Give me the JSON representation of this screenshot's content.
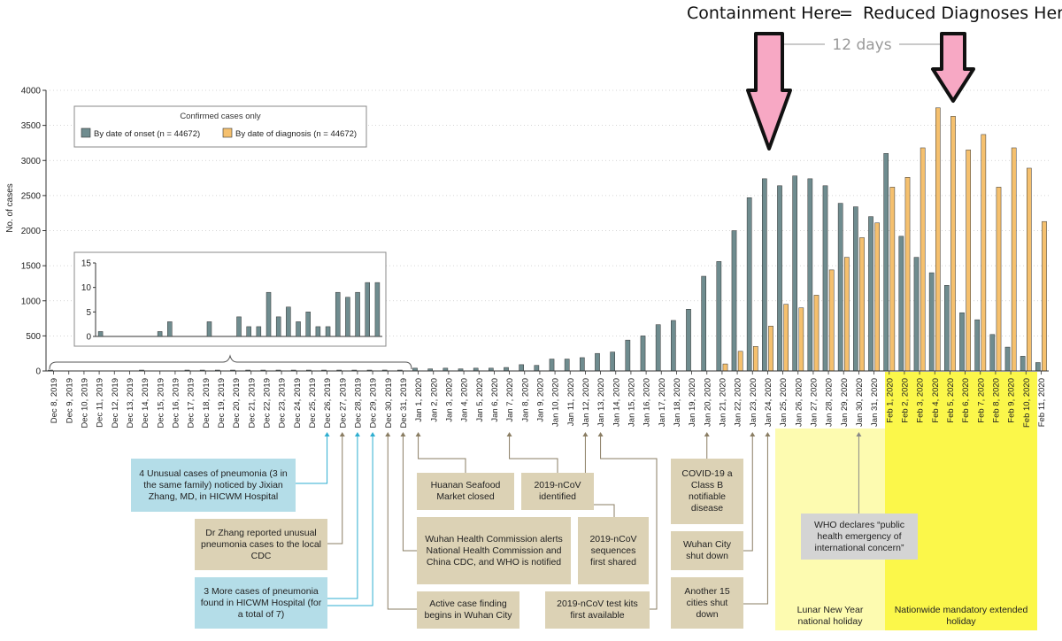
{
  "headline": {
    "containment": "Containment Here",
    "equals": "=",
    "reduced": "Reduced Diagnoses Here",
    "gap_label": "12 days"
  },
  "legend": {
    "title": "Confirmed cases only",
    "onset": "By date of onset (n = 44672)",
    "diagnosis": "By date of diagnosis (n = 44672)"
  },
  "colors": {
    "onset": "#6f8c8f",
    "diagnosis": "#f5c06e",
    "arrow": "#f7a8c4",
    "holiday_light": "#fdfbb0",
    "holiday_bright": "#fbf74a"
  },
  "chart_data": {
    "type": "bar",
    "title": "",
    "xlabel": "",
    "ylabel": "No. of cases",
    "ylim": [
      0,
      4000
    ],
    "yticks": [
      0,
      500,
      1000,
      1500,
      2000,
      2500,
      3000,
      3500,
      4000
    ],
    "categories": [
      "Dec 8, 2019",
      "Dec 9, 2019",
      "Dec 10, 2019",
      "Dec 11, 2019",
      "Dec 12, 2019",
      "Dec 13, 2019",
      "Dec 14, 2019",
      "Dec 15, 2019",
      "Dec 16, 2019",
      "Dec 17, 2019",
      "Dec 18, 2019",
      "Dec 19, 2019",
      "Dec 20, 2019",
      "Dec 21, 2019",
      "Dec 22, 2019",
      "Dec 23, 2019",
      "Dec 24, 2019",
      "Dec 25, 2019",
      "Dec 26, 2019",
      "Dec 27, 2019",
      "Dec 28, 2019",
      "Dec 29, 2019",
      "Dec 30, 2019",
      "Dec 31, 2019",
      "Jan 1, 2020",
      "Jan 2, 2020",
      "Jan 3, 2020",
      "Jan 4, 2020",
      "Jan 5, 2020",
      "Jan 6, 2020",
      "Jan 7, 2020",
      "Jan 8, 2020",
      "Jan 9, 2020",
      "Jan 10, 2020",
      "Jan 11, 2020",
      "Jan 12, 2020",
      "Jan 13, 2020",
      "Jan 14, 2020",
      "Jan 15, 2020",
      "Jan 16, 2020",
      "Jan 17, 2020",
      "Jan 18, 2020",
      "Jan 19, 2020",
      "Jan 20, 2020",
      "Jan 21, 2020",
      "Jan 22, 2020",
      "Jan 23, 2020",
      "Jan 24, 2020",
      "Jan 25, 2020",
      "Jan 26, 2020",
      "Jan 27, 2020",
      "Jan 28, 2020",
      "Jan 29, 2020",
      "Jan 30, 2020",
      "Jan 31, 2020",
      "Feb 1, 2020",
      "Feb 2, 2020",
      "Feb 3, 2020",
      "Feb 4, 2020",
      "Feb 5, 2020",
      "Feb 6, 2020",
      "Feb 7, 2020",
      "Feb 8, 2020",
      "Feb 9, 2020",
      "Feb 10, 2020",
      "Feb 11, 2020"
    ],
    "series": [
      {
        "name": "By date of onset (n = 44672)",
        "values": [
          1,
          0,
          0,
          0,
          0,
          0,
          3,
          0,
          0,
          3,
          4,
          2,
          2,
          11,
          8,
          10,
          6,
          9,
          4,
          12,
          11,
          12,
          13,
          12,
          40,
          30,
          40,
          30,
          40,
          40,
          50,
          90,
          80,
          170,
          170,
          190,
          250,
          270,
          440,
          500,
          660,
          720,
          880,
          1350,
          1560,
          2000,
          2470,
          2740,
          2640,
          2780,
          2740,
          2640,
          2390,
          2340,
          2200,
          3100,
          1920,
          1620,
          1400,
          1220,
          830,
          730,
          520,
          340,
          210,
          120
        ]
      },
      {
        "name": "By date of diagnosis (n = 44672)",
        "values": [
          0,
          0,
          0,
          0,
          0,
          0,
          0,
          0,
          0,
          0,
          0,
          0,
          0,
          0,
          0,
          0,
          0,
          0,
          0,
          0,
          0,
          0,
          0,
          0,
          0,
          0,
          0,
          0,
          0,
          0,
          0,
          0,
          0,
          0,
          0,
          0,
          0,
          0,
          0,
          0,
          0,
          0,
          0,
          0,
          100,
          280,
          350,
          640,
          950,
          900,
          1080,
          1440,
          1620,
          1900,
          2110,
          2620,
          2760,
          3180,
          3750,
          3630,
          3150,
          3370,
          2620,
          3180,
          2890,
          2130
        ]
      }
    ],
    "inset": {
      "ylim": [
        0,
        15
      ],
      "yticks": [
        0,
        5,
        10,
        15
      ],
      "values": [
        1,
        0,
        0,
        0,
        0,
        0,
        1,
        3,
        0,
        0,
        0,
        3,
        0,
        0,
        4,
        2,
        2,
        9,
        4,
        6,
        3,
        5,
        2,
        2,
        9,
        8,
        9,
        11,
        11
      ]
    }
  },
  "annotations": [
    {
      "id": "a1",
      "text": "4 Unusual cases of pneumonia (3 in the same family) noticed by Jixian Zhang, MD, in HICWM Hospital",
      "style": "blue"
    },
    {
      "id": "a2",
      "text": "Dr Zhang reported unusual pneumonia cases to the local CDC",
      "style": "tan"
    },
    {
      "id": "a3",
      "text": "3 More cases of pneumonia found in HICWM Hospital (for a total of 7)",
      "style": "blue"
    },
    {
      "id": "a4",
      "text": "Huanan Seafood Market closed",
      "style": "tan"
    },
    {
      "id": "a5",
      "text": "2019-nCoV identified",
      "style": "tan"
    },
    {
      "id": "a6",
      "text": "Wuhan Health Commission alerts National Health Commission and China CDC, and WHO is notified",
      "style": "tan"
    },
    {
      "id": "a7",
      "text": "2019-nCoV sequences first shared",
      "style": "tan"
    },
    {
      "id": "a8",
      "text": "Active case finding begins in Wuhan City",
      "style": "tan"
    },
    {
      "id": "a9",
      "text": "2019-nCoV test kits first available",
      "style": "tan"
    },
    {
      "id": "a10",
      "text": "COVID-19 a Class B notifiable disease",
      "style": "tan"
    },
    {
      "id": "a11",
      "text": "Wuhan City shut down",
      "style": "tan"
    },
    {
      "id": "a12",
      "text": "Another 15 cities shut down",
      "style": "tan"
    },
    {
      "id": "a13",
      "text": "WHO declares “public health emergency of international concern”",
      "style": "gray"
    }
  ],
  "holidays": {
    "lunar": "Lunar New Year national holiday",
    "nationwide": "Nationwide mandatory extended holiday"
  }
}
